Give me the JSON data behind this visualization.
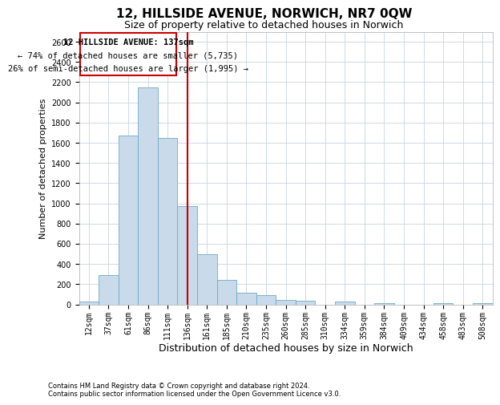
{
  "title": "12, HILLSIDE AVENUE, NORWICH, NR7 0QW",
  "subtitle": "Size of property relative to detached houses in Norwich",
  "xlabel": "Distribution of detached houses by size in Norwich",
  "ylabel": "Number of detached properties",
  "footer_line1": "Contains HM Land Registry data © Crown copyright and database right 2024.",
  "footer_line2": "Contains public sector information licensed under the Open Government Licence v3.0.",
  "annotation_line1": "12 HILLSIDE AVENUE: 137sqm",
  "annotation_line2": "← 74% of detached houses are smaller (5,735)",
  "annotation_line3": "26% of semi-detached houses are larger (1,995) →",
  "property_line_x": 5,
  "bar_color": "#c9daea",
  "bar_edge_color": "#6fa8c8",
  "line_color": "#cc0000",
  "background_color": "#ffffff",
  "grid_color": "#c8d4e0",
  "categories": [
    "12sqm",
    "37sqm",
    "61sqm",
    "86sqm",
    "111sqm",
    "136sqm",
    "161sqm",
    "185sqm",
    "210sqm",
    "235sqm",
    "260sqm",
    "285sqm",
    "310sqm",
    "334sqm",
    "359sqm",
    "384sqm",
    "409sqm",
    "434sqm",
    "458sqm",
    "483sqm",
    "508sqm"
  ],
  "values": [
    25,
    290,
    1670,
    2150,
    1650,
    970,
    500,
    245,
    115,
    95,
    40,
    35,
    0,
    25,
    0,
    12,
    0,
    0,
    15,
    0,
    10
  ],
  "ylim": [
    0,
    2700
  ],
  "yticks": [
    0,
    200,
    400,
    600,
    800,
    1000,
    1200,
    1400,
    1600,
    1800,
    2000,
    2200,
    2400,
    2600
  ],
  "title_fontsize": 11,
  "subtitle_fontsize": 9,
  "xlabel_fontsize": 9,
  "ylabel_fontsize": 8,
  "tick_fontsize": 7,
  "ann_fontsize": 7.5
}
